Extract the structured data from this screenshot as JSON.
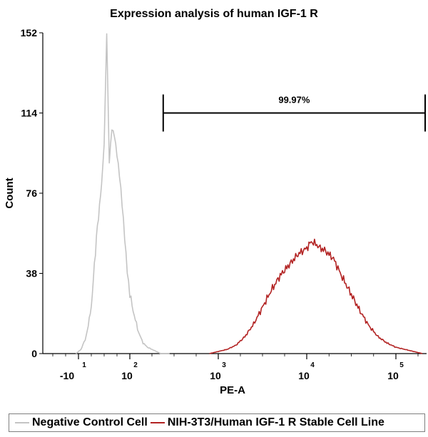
{
  "chart_data": {
    "type": "area",
    "title": "Expression analysis of human IGF-1 R",
    "xlabel": "PE-A",
    "ylabel": "Count",
    "xscale": "biexponential (log decades)",
    "ylim": [
      0,
      152
    ],
    "y_ticks": [
      0,
      38,
      76,
      114,
      152
    ],
    "x_ticks": [
      {
        "base": "-10",
        "exp": "1",
        "pos": 1
      },
      {
        "base": "10",
        "exp": "2",
        "pos": 2
      },
      {
        "base": "10",
        "exp": "3",
        "pos": 3
      },
      {
        "base": "10",
        "exp": "4",
        "pos": 4
      },
      {
        "base": "10",
        "exp": "5",
        "pos": 5
      }
    ],
    "gate": {
      "label": "99.97%",
      "from_decade": 2.45,
      "to_decade": 5.4,
      "count_level": 114
    },
    "series": [
      {
        "name": "Negative Control Cell",
        "color": "#c4c4c4",
        "x": [
          0.95,
          1.05,
          1.15,
          1.25,
          1.35,
          1.45,
          1.5,
          1.55,
          1.6,
          1.65,
          1.7,
          1.75,
          1.8,
          1.85,
          1.9,
          1.95,
          2.0,
          2.05,
          2.1,
          2.15,
          2.2,
          2.25,
          2.3,
          2.35,
          2.45
        ],
        "values": [
          0,
          2,
          8,
          22,
          55,
          80,
          100,
          152,
          90,
          106,
          104,
          95,
          84,
          70,
          55,
          40,
          28,
          18,
          10,
          5,
          3,
          2,
          1,
          0,
          0
        ]
      },
      {
        "name": "NIH-3T3/Human IGF-1 R Stable Cell Line",
        "color": "#b22222",
        "x": [
          2.9,
          3.0,
          3.1,
          3.2,
          3.3,
          3.4,
          3.5,
          3.6,
          3.7,
          3.8,
          3.9,
          4.0,
          4.05,
          4.1,
          4.15,
          4.2,
          4.3,
          4.4,
          4.5,
          4.6,
          4.7,
          4.8,
          4.9,
          5.0,
          5.1,
          5.2,
          5.3
        ],
        "values": [
          0,
          1,
          2,
          4,
          8,
          14,
          22,
          30,
          37,
          42,
          47,
          50,
          53,
          52,
          50,
          49,
          45,
          36,
          28,
          20,
          13,
          8,
          5,
          3,
          2,
          1,
          0
        ]
      }
    ]
  }
}
